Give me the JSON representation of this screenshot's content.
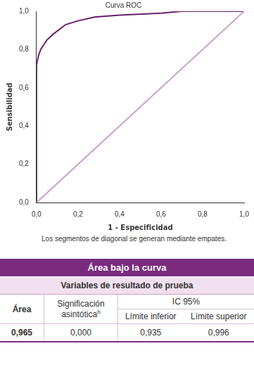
{
  "chart_data": {
    "type": "line",
    "title": "Curva ROC",
    "x_label": "1 - Especificidad",
    "y_label": "Sensibilidad",
    "series": [
      {
        "color": "#c9a0cf",
        "x": [
          0,
          1
        ],
        "values": [
          0,
          1
        ]
      },
      {
        "color": "#6b1f6e",
        "x": [
          0,
          0,
          0.01,
          0.02,
          0.05,
          0.08,
          0.14,
          0.2,
          0.28,
          0.4,
          0.6,
          0.7,
          1
        ],
        "values": [
          0,
          0.72,
          0.77,
          0.8,
          0.85,
          0.88,
          0.93,
          0.95,
          0.97,
          0.98,
          0.99,
          1,
          1
        ]
      }
    ],
    "xlim": [
      0,
      1
    ],
    "ylim": [
      0,
      1
    ],
    "xticks": [
      {
        "value": 0,
        "label": "0,0"
      },
      {
        "value": 0.2,
        "label": "0,2"
      },
      {
        "value": 0.4,
        "label": "0,4"
      },
      {
        "value": 0.6,
        "label": "0,6"
      },
      {
        "value": 0.8,
        "label": "0,8"
      },
      {
        "value": 1,
        "label": "1,0"
      }
    ],
    "yticks": [
      {
        "value": 0,
        "label": "0,0"
      },
      {
        "value": 0.2,
        "label": "0,2"
      },
      {
        "value": 0.4,
        "label": "0,4"
      },
      {
        "value": 0.6,
        "label": "0,6"
      },
      {
        "value": 0.8,
        "label": "0,8"
      },
      {
        "value": 1,
        "label": "1,0"
      }
    ],
    "grid": false
  },
  "caption": "Los segmentos de diagonal se generan mediante empates.",
  "table": {
    "title": "Área bajo la curva",
    "subtitle": "Variables de resultado de prueba",
    "header": {
      "area": "Área",
      "significance": "Significación asintótica",
      "significance_mark": "b",
      "ci": "IC 95%",
      "lower": "Límite inferior",
      "upper": "Límite superior"
    },
    "row": [
      "0,965",
      "0,000",
      "0,935",
      "0,996"
    ]
  }
}
